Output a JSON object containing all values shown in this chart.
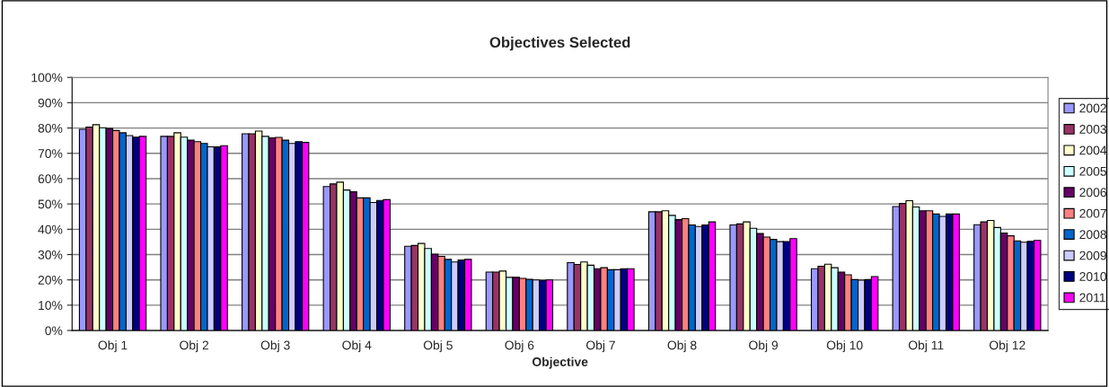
{
  "chart_data": {
    "type": "bar",
    "title": "Objectives Selected",
    "xlabel": "Objective",
    "categories": [
      "Obj 1",
      "Obj 2",
      "Obj 3",
      "Obj 4",
      "Obj 5",
      "Obj 6",
      "Obj 7",
      "Obj 8",
      "Obj 9",
      "Obj 10",
      "Obj 11",
      "Obj 12"
    ],
    "series": [
      {
        "name": "2002",
        "color": "#9999ff",
        "values": [
          79.5,
          76.7,
          77.7,
          56.9,
          33.3,
          23.1,
          26.8,
          46.9,
          41.7,
          24.4,
          49.0,
          41.8
        ]
      },
      {
        "name": "2003",
        "color": "#993366",
        "values": [
          80.4,
          76.7,
          77.7,
          57.9,
          33.6,
          23.1,
          26.1,
          46.9,
          42.1,
          25.4,
          50.2,
          42.9
        ]
      },
      {
        "name": "2004",
        "color": "#ffffcc",
        "values": [
          81.3,
          78.1,
          78.8,
          58.6,
          34.4,
          23.5,
          27.1,
          47.3,
          42.9,
          26.2,
          51.3,
          43.5
        ]
      },
      {
        "name": "2005",
        "color": "#ccffff",
        "values": [
          80.1,
          76.4,
          76.7,
          55.5,
          32.4,
          21.0,
          25.8,
          45.5,
          40.4,
          24.8,
          48.8,
          40.7
        ]
      },
      {
        "name": "2006",
        "color": "#660066",
        "values": [
          79.8,
          75.2,
          76.1,
          54.8,
          30.2,
          21.0,
          24.4,
          43.8,
          38.3,
          23.1,
          47.3,
          38.5
        ]
      },
      {
        "name": "2007",
        "color": "#ff8080",
        "values": [
          79.0,
          74.6,
          76.3,
          52.4,
          29.3,
          20.6,
          24.8,
          44.2,
          36.9,
          22.0,
          47.3,
          37.4
        ]
      },
      {
        "name": "2008",
        "color": "#0066cc",
        "values": [
          78.1,
          73.9,
          75.2,
          52.4,
          28.1,
          20.2,
          24.0,
          41.7,
          36.0,
          20.1,
          46.0,
          35.4
        ]
      },
      {
        "name": "2009",
        "color": "#ccccff",
        "values": [
          77.0,
          72.6,
          73.9,
          50.6,
          27.1,
          20.0,
          24.0,
          41.1,
          35.1,
          19.9,
          45.1,
          34.9
        ]
      },
      {
        "name": "2010",
        "color": "#000080",
        "values": [
          76.4,
          72.6,
          74.6,
          51.4,
          27.9,
          19.8,
          24.4,
          41.7,
          35.1,
          20.1,
          46.0,
          35.2
        ]
      },
      {
        "name": "2011",
        "color": "#ff00ff",
        "values": [
          76.7,
          73.0,
          74.3,
          51.7,
          28.1,
          20.0,
          24.4,
          42.9,
          36.3,
          21.3,
          46.0,
          35.6
        ]
      }
    ],
    "ylim": [
      0,
      100
    ],
    "yticks": [
      {
        "value": 0,
        "label": "0%"
      },
      {
        "value": 10,
        "label": "10%"
      },
      {
        "value": 20,
        "label": "20%"
      },
      {
        "value": 30,
        "label": "30%"
      },
      {
        "value": 40,
        "label": "40%"
      },
      {
        "value": 50,
        "label": "50%"
      },
      {
        "value": 60,
        "label": "60%"
      },
      {
        "value": 70,
        "label": "70%"
      },
      {
        "value": 80,
        "label": "80%"
      },
      {
        "value": 90,
        "label": "90%"
      },
      {
        "value": 100,
        "label": "100%"
      }
    ],
    "grid": "y",
    "legend": "right"
  }
}
